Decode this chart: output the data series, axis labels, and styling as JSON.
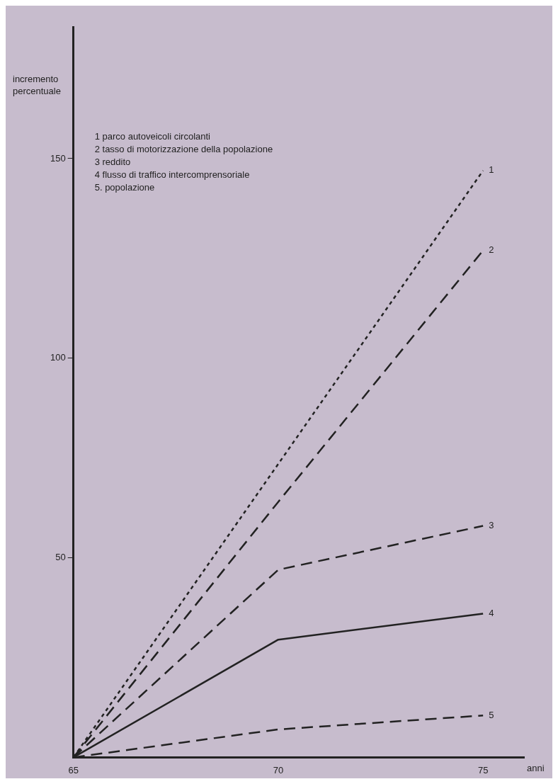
{
  "chart_data": {
    "type": "line",
    "ylabel": "incremento percentuale",
    "xlabel": "anni",
    "x": [
      65,
      70,
      75
    ],
    "xlim": [
      65,
      76
    ],
    "xticks": [
      65,
      70,
      75
    ],
    "ylim": [
      0,
      183
    ],
    "yticks": [
      50,
      100,
      150
    ],
    "grid": false,
    "marker": "none",
    "series": [
      {
        "name": "1",
        "color": "#222222",
        "line_style": "dotted",
        "values": [
          0,
          73.5,
          147
        ]
      },
      {
        "name": "2",
        "color": "#222222",
        "line_style": "dashed",
        "values": [
          0,
          64,
          127
        ]
      },
      {
        "name": "3",
        "color": "#222222",
        "line_style": "dashed",
        "values": [
          0,
          47,
          58
        ]
      },
      {
        "name": "4",
        "color": "#222222",
        "line_style": "solid",
        "values": [
          0,
          29.5,
          36
        ]
      },
      {
        "name": "5",
        "color": "#222222",
        "line_style": "dashed",
        "values": [
          0,
          7,
          10.5
        ]
      }
    ],
    "annotations": [
      "1 parco autoveicoli circolanti",
      "2 tasso di motorizzazione della popolazione",
      "3 reddito",
      "4 flusso di traffico intercomprensoriale",
      "5. popolazione"
    ]
  }
}
